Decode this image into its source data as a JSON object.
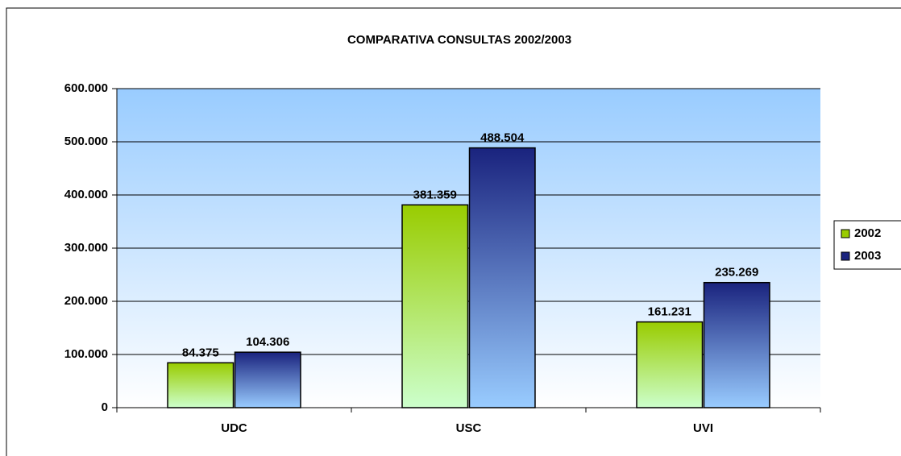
{
  "chart_data": {
    "type": "bar",
    "title": "COMPARATIVA CONSULTAS 2002/2003",
    "categories": [
      "UDC",
      "USC",
      "UVI"
    ],
    "series": [
      {
        "name": "2002",
        "color": "#99cc00",
        "values": [
          84375,
          381359,
          161231
        ],
        "value_labels": [
          "84.375",
          "381.359",
          "161.231"
        ]
      },
      {
        "name": "2003",
        "color": "#1a237e",
        "values": [
          104306,
          488504,
          235269
        ],
        "value_labels": [
          "104.306",
          "488.504",
          "235.269"
        ]
      }
    ],
    "ylim": [
      0,
      600000
    ],
    "yticks": [
      0,
      {
        "value": 100000,
        "label": "100.000"
      },
      {
        "value": 200000,
        "label": "200.000"
      },
      {
        "value": 300000,
        "label": "300.000"
      },
      {
        "value": 400000,
        "label": "400.000"
      },
      {
        "value": 500000,
        "label": "500.000"
      },
      {
        "value": 600000,
        "label": "600.000"
      }
    ],
    "grid": true,
    "legend": "right"
  }
}
